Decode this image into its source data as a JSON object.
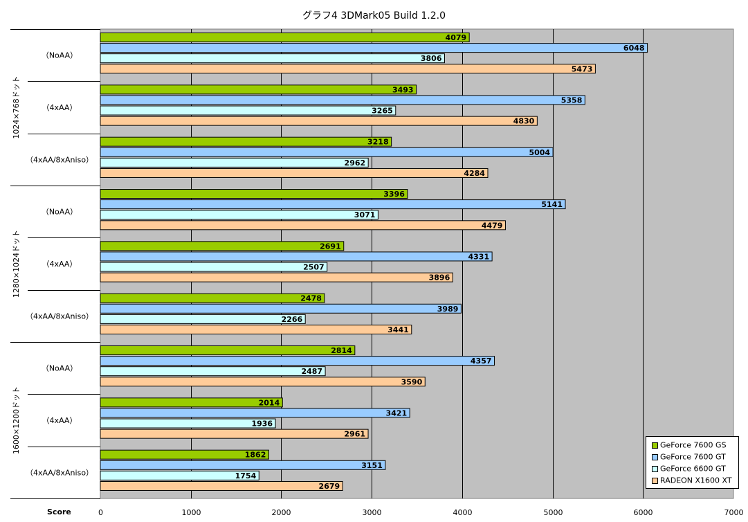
{
  "chart_data": {
    "type": "bar",
    "orientation": "horizontal",
    "title": "グラフ4  3DMark05 Build 1.2.0",
    "xlabel": "Score",
    "xlim": [
      0,
      7000
    ],
    "x_ticks": [
      0,
      1000,
      2000,
      3000,
      4000,
      5000,
      6000,
      7000
    ],
    "grid": "vertical",
    "legend_position": "bottom-right",
    "groups": [
      {
        "label": "1024×768ドット",
        "categories": [
          "（NoAA）",
          "（4xAA）",
          "（4xAA/8xAniso）"
        ]
      },
      {
        "label": "1280×1024ドット",
        "categories": [
          "（NoAA）",
          "（4xAA）",
          "（4xAA/8xAniso）"
        ]
      },
      {
        "label": "1600×1200ドット",
        "categories": [
          "（NoAA）",
          "（4xAA）",
          "（4xAA/8xAniso）"
        ]
      }
    ],
    "series": [
      {
        "name": "GeForce 7600 GS",
        "color": "#99CC00",
        "values": [
          4079,
          3493,
          3218,
          3396,
          2691,
          2478,
          2814,
          2014,
          1862
        ]
      },
      {
        "name": "GeForce 7600 GT",
        "color": "#99CCFF",
        "values": [
          6048,
          5358,
          5004,
          5141,
          4331,
          3989,
          4357,
          3421,
          3151
        ]
      },
      {
        "name": "GeForce 6600 GT",
        "color": "#CCFFFF",
        "values": [
          3806,
          3265,
          2962,
          3071,
          2507,
          2266,
          2487,
          1936,
          1754
        ]
      },
      {
        "name": "RADEON X1600 XT",
        "color": "#FFCC99",
        "values": [
          5473,
          4830,
          4284,
          4479,
          3896,
          3441,
          3590,
          2961,
          2679
        ]
      }
    ],
    "plot_background": "#C0C0C0"
  }
}
